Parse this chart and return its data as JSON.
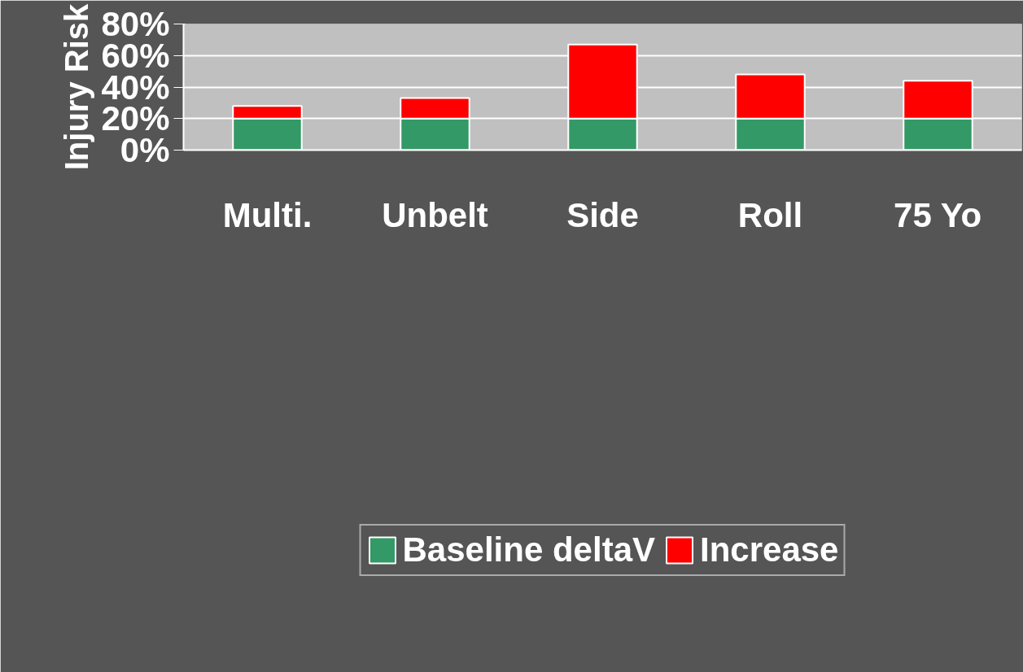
{
  "chart_data": {
    "type": "bar",
    "stacked": true,
    "ylabel": "Injury Risk",
    "categories": [
      "Multi.",
      "Unbelt",
      "Side",
      "Roll",
      "75 Yo"
    ],
    "series": [
      {
        "name": "Baseline deltaV",
        "color": "#339966",
        "values": [
          20,
          20,
          20,
          20,
          20
        ]
      },
      {
        "name": "Increase",
        "color": "#ff0000",
        "values": [
          8,
          13,
          47,
          28,
          24
        ]
      }
    ],
    "ylim": [
      0,
      80
    ],
    "yticks": [
      {
        "value": 0,
        "label": "0%"
      },
      {
        "value": 20,
        "label": "20%"
      },
      {
        "value": 40,
        "label": "40%"
      },
      {
        "value": 60,
        "label": "60%"
      },
      {
        "value": 80,
        "label": "80%"
      }
    ],
    "grid": "y",
    "legend": "bottom"
  }
}
